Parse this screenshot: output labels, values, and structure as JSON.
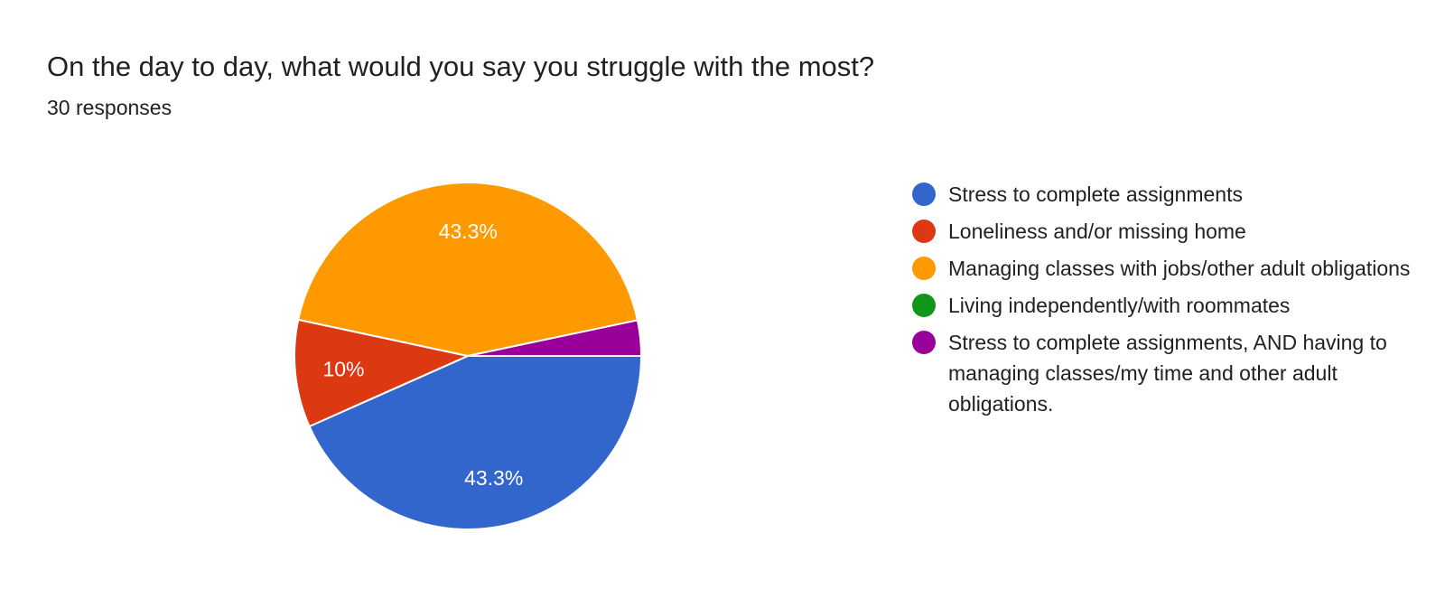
{
  "question": {
    "title": "On the day to day, what would you say you struggle with the most?",
    "responses": "30 responses"
  },
  "chart_data": {
    "type": "pie",
    "title": "On the day to day, what would you say you struggle with the most?",
    "slices": [
      {
        "label": "Stress to complete assignments",
        "value": 43.3,
        "display": "43.3%",
        "color": "#3366cc"
      },
      {
        "label": "Loneliness and/or missing home",
        "value": 10,
        "display": "10%",
        "color": "#dc3912"
      },
      {
        "label": "Managing classes with jobs/other adult obligations",
        "value": 43.3,
        "display": "43.3%",
        "color": "#ff9900"
      },
      {
        "label": "Living independently/with roommates",
        "value": 0,
        "display": "",
        "color": "#109618"
      },
      {
        "label": "Stress to complete assignments, AND having to managing classes/my time and other adult obligations.",
        "value": 3.3,
        "display": "",
        "color": "#990099"
      }
    ],
    "legend_position": "right"
  }
}
